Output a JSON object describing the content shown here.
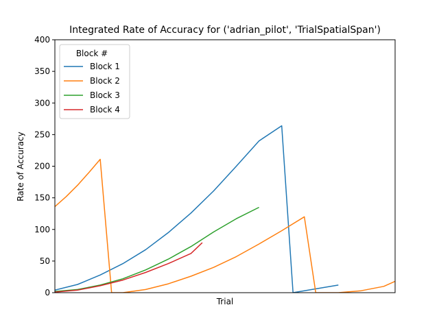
{
  "chart_data": {
    "type": "line",
    "title": "Integrated Rate of Accuracy for ('adrian_pilot', 'TrialSpatialSpan')",
    "xlabel": "Trial",
    "ylabel": "Rate of Accuracy",
    "xlim": [
      0,
      30
    ],
    "ylim": [
      0,
      400
    ],
    "yticks": [
      0,
      50,
      100,
      150,
      200,
      250,
      300,
      350,
      400
    ],
    "legend": {
      "title": "Block #",
      "position": "top-left"
    },
    "series": [
      {
        "name": "Block 1",
        "color": "#1f77b4",
        "x": [
          0,
          2,
          4,
          6,
          8,
          10,
          12,
          14,
          16,
          18,
          20,
          21,
          25
        ],
        "y": [
          4,
          13,
          28,
          46,
          68,
          95,
          126,
          161,
          200,
          240,
          264,
          0,
          12
        ]
      },
      {
        "name": "Block 2",
        "color": "#ff7f0e",
        "x": [
          0,
          1,
          2,
          3,
          4,
          5,
          6,
          8,
          10,
          12,
          14,
          16,
          18,
          20,
          22,
          23,
          25,
          27,
          29,
          30
        ],
        "y": [
          136,
          152,
          170,
          190,
          211,
          0,
          0,
          5,
          14,
          26,
          40,
          57,
          77,
          98,
          120,
          0,
          0,
          3,
          10,
          18
        ]
      },
      {
        "name": "Block 3",
        "color": "#2ca02c",
        "x": [
          0,
          2,
          4,
          6,
          8,
          10,
          12,
          14,
          16,
          18
        ],
        "y": [
          2,
          5,
          12,
          22,
          36,
          53,
          73,
          96,
          117,
          135
        ]
      },
      {
        "name": "Block 4",
        "color": "#d62728",
        "x": [
          0,
          2,
          4,
          6,
          8,
          10,
          12,
          13
        ],
        "y": [
          1,
          4,
          11,
          20,
          32,
          46,
          62,
          79
        ]
      }
    ]
  }
}
